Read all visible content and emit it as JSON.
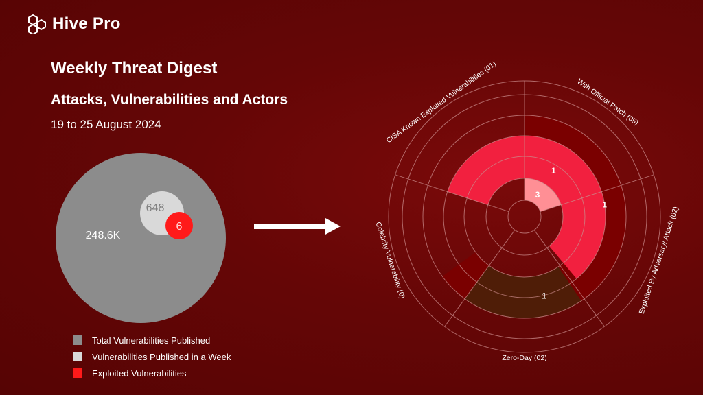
{
  "brand": {
    "name": "Hive Pro"
  },
  "header": {
    "title": "Weekly Threat Digest",
    "subtitle": "Attacks, Vulnerabilities and Actors",
    "date_range": "19 to 25 August 2024"
  },
  "colors": {
    "total": "#8c8c8c",
    "week": "#d9d9d9",
    "exploited": "#ff1a1a",
    "ring_outer": "#7a0000",
    "ring_middle": "#f2203f",
    "ring_inner": "#ff8f95",
    "zero_day": "#4f1d07"
  },
  "chart_data": [
    {
      "type": "bubble",
      "series": [
        {
          "name": "Total Vulnerabilities Published",
          "value": 248600,
          "label": "248.6K"
        },
        {
          "name": "Vulnerabilities Published in a Week",
          "value": 648,
          "label": "648"
        },
        {
          "name": "Exploited Vulnerabilities",
          "value": 6,
          "label": "6"
        }
      ]
    },
    {
      "type": "polar",
      "categories": [
        "With Official Patch (05)",
        "Exploited By Adversary/ Attack (02)",
        "Zero-Day (02)",
        "Celebrity Vulnerability (0)",
        "CISA Known Exploited Vulnerabilities (01)"
      ],
      "rings": [
        {
          "level": "inner",
          "segments": [
            {
              "category": "With Official Patch (05)",
              "value": 3,
              "label": "3"
            }
          ]
        },
        {
          "level": "middle",
          "segments": [
            {
              "category": "With Official Patch (05)",
              "value": 1,
              "label": "1"
            }
          ]
        },
        {
          "level": "outer",
          "segments": [
            {
              "category": "With Official Patch (05)",
              "value": 1,
              "label": "1"
            },
            {
              "category": "Zero-Day (02)",
              "value": 1,
              "label": "1"
            }
          ]
        }
      ]
    }
  ]
}
